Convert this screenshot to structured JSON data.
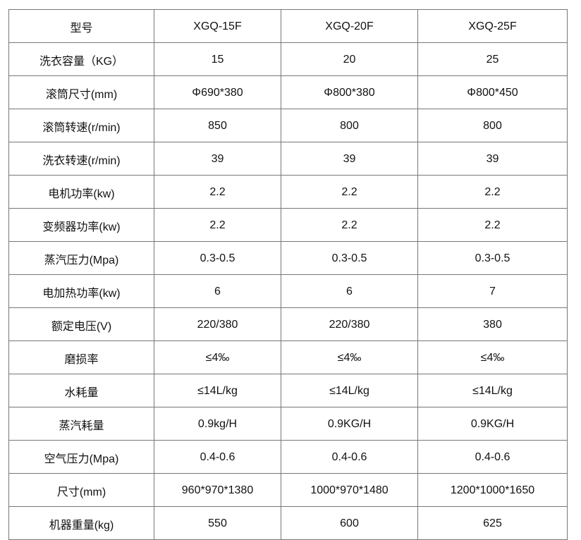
{
  "table": {
    "header": [
      "型号",
      "XGQ-15F",
      "XGQ-20F",
      "XGQ-25F"
    ],
    "rows": [
      [
        "洗衣容量（KG）",
        "15",
        "20",
        "25"
      ],
      [
        "滚筒尺寸(mm)",
        "Φ690*380",
        "Φ800*380",
        "Φ800*450"
      ],
      [
        "滚筒转速(r/min)",
        "850",
        "800",
        "800"
      ],
      [
        "洗衣转速(r/min)",
        "39",
        "39",
        "39"
      ],
      [
        "电机功率(kw)",
        "2.2",
        "2.2",
        "2.2"
      ],
      [
        "变频器功率(kw)",
        "2.2",
        "2.2",
        "2.2"
      ],
      [
        "蒸汽压力(Mpa)",
        "0.3-0.5",
        "0.3-0.5",
        "0.3-0.5"
      ],
      [
        "电加热功率(kw)",
        "6",
        "6",
        "7"
      ],
      [
        "额定电压(V)",
        "220/380",
        "220/380",
        "380"
      ],
      [
        "磨损率",
        "≤4‰",
        "≤4‰",
        "≤4‰"
      ],
      [
        "水耗量",
        "≤14L/kg",
        "≤14L/kg",
        "≤14L/kg"
      ],
      [
        "蒸汽耗量",
        "0.9kg/H",
        "0.9KG/H",
        "0.9KG/H"
      ],
      [
        "空气压力(Mpa)",
        "0.4-0.6",
        "0.4-0.6",
        "0.4-0.6"
      ],
      [
        "尺寸(mm)",
        "960*970*1380",
        "1000*970*1480",
        "1200*1000*1650"
      ],
      [
        "机器重量(kg)",
        "550",
        "600",
        "625"
      ]
    ]
  }
}
